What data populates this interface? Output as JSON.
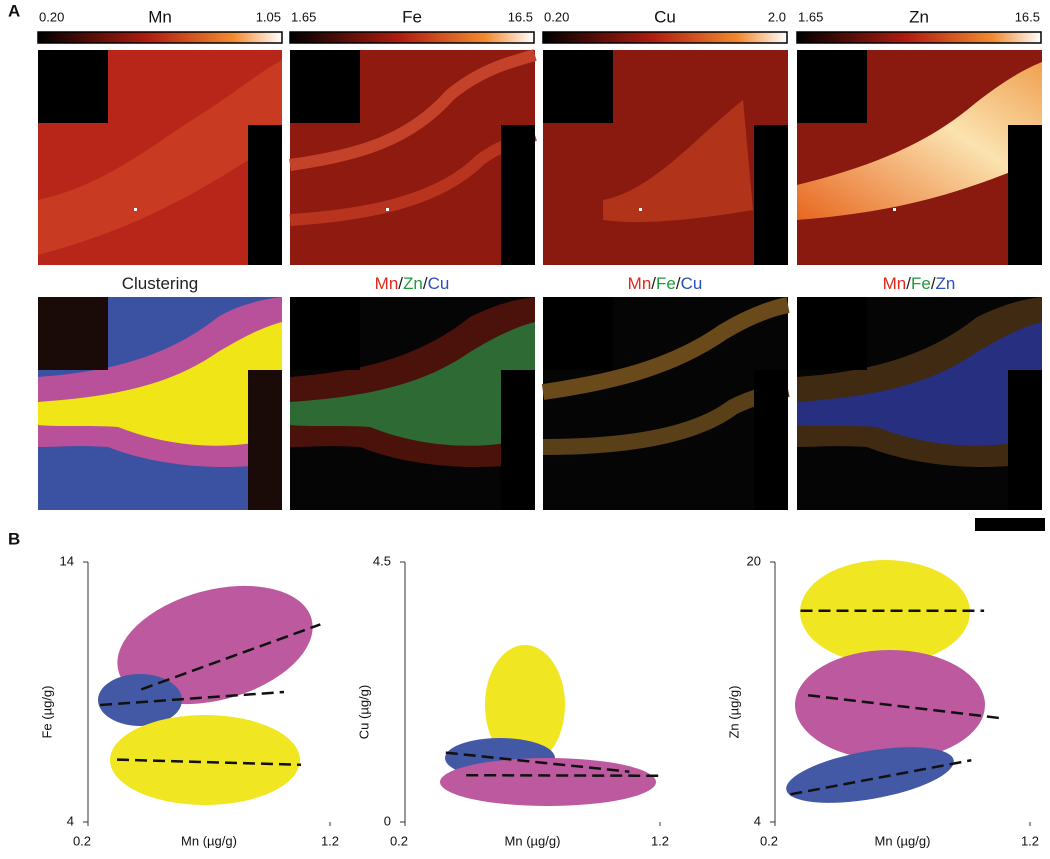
{
  "panel_labels": [
    "A",
    "B"
  ],
  "maps": [
    {
      "element": "Mn",
      "min": "0.20",
      "max": "1.05"
    },
    {
      "element": "Fe",
      "min": "1.65",
      "max": "16.5"
    },
    {
      "element": "Cu",
      "min": "0.20",
      "max": "2.0"
    },
    {
      "element": "Zn",
      "min": "1.65",
      "max": "16.5"
    }
  ],
  "overlays": [
    {
      "parts": [
        {
          "text": "Clustering",
          "color": "#222222"
        }
      ]
    },
    {
      "parts": [
        {
          "text": "Mn",
          "color": "#e02a1a"
        },
        {
          "text": "/",
          "color": "#222222"
        },
        {
          "text": "Zn",
          "color": "#1f9a3a"
        },
        {
          "text": "/",
          "color": "#222222"
        },
        {
          "text": "Cu",
          "color": "#2b4fc0"
        }
      ]
    },
    {
      "parts": [
        {
          "text": "Mn",
          "color": "#e02a1a"
        },
        {
          "text": "/",
          "color": "#222222"
        },
        {
          "text": "Fe",
          "color": "#1f9a3a"
        },
        {
          "text": "/",
          "color": "#222222"
        },
        {
          "text": "Cu",
          "color": "#2b4fc0"
        }
      ]
    },
    {
      "parts": [
        {
          "text": "Mn",
          "color": "#e02a1a"
        },
        {
          "text": "/",
          "color": "#222222"
        },
        {
          "text": "Fe",
          "color": "#1f9a3a"
        },
        {
          "text": "/",
          "color": "#222222"
        },
        {
          "text": "Zn",
          "color": "#2b4fc0"
        }
      ]
    }
  ],
  "chart_data": [
    {
      "type": "scatter",
      "x_label": "Mn (µg/g)",
      "y_label": "Fe (µg/g)",
      "xlim": [
        0.2,
        1.2
      ],
      "ylim": [
        4,
        14
      ],
      "xticks": [
        0.2,
        1.2
      ],
      "yticks": [
        4,
        14
      ],
      "line_color": "#111111",
      "line_style": "dashed",
      "lines": [
        {
          "x": [
            0.42,
            1.16
          ],
          "values": [
            9.1,
            11.6
          ]
        },
        {
          "x": [
            0.25,
            1.01
          ],
          "values": [
            8.5,
            9.0
          ]
        },
        {
          "x": [
            0.32,
            1.08
          ],
          "values": [
            6.4,
            6.2
          ]
        }
      ]
    },
    {
      "type": "scatter",
      "x_label": "Mn (µg/g)",
      "y_label": "Cu (µg/g)",
      "xlim": [
        0.2,
        1.2
      ],
      "ylim": [
        0,
        4.5
      ],
      "xticks": [
        0.2,
        1.2
      ],
      "yticks": [
        0,
        4.5
      ],
      "line_color": "#111111",
      "line_style": "dashed",
      "lines": [
        {
          "x": [
            0.36,
            1.08
          ],
          "values": [
            1.2,
            0.87
          ]
        },
        {
          "x": [
            0.44,
            1.2
          ],
          "values": [
            0.81,
            0.8
          ]
        }
      ]
    },
    {
      "type": "scatter",
      "x_label": "Mn (µg/g)",
      "y_label": "Zn (µg/g)",
      "xlim": [
        0.2,
        1.2
      ],
      "ylim": [
        4,
        20
      ],
      "xticks": [
        0.2,
        1.2
      ],
      "yticks": [
        4,
        20
      ],
      "line_color": "#111111",
      "line_style": "dashed",
      "lines": [
        {
          "x": [
            0.3,
            1.02
          ],
          "values": [
            17.0,
            17.0
          ]
        },
        {
          "x": [
            0.33,
            1.08
          ],
          "values": [
            11.8,
            10.4
          ]
        },
        {
          "x": [
            0.26,
            0.97
          ],
          "values": [
            5.7,
            7.8
          ]
        }
      ]
    }
  ]
}
